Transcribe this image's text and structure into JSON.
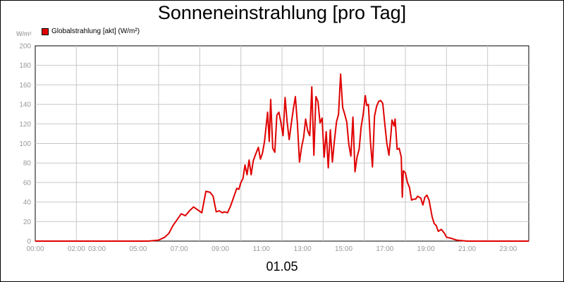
{
  "chart_data": {
    "type": "line",
    "title": "Sonneneinstrahlung [pro Tag]",
    "ylabel": "W/m²",
    "xlabel": "01.05",
    "ylim": [
      0,
      200
    ],
    "y_ticks": [
      "0",
      "20",
      "40",
      "60",
      "80",
      "100",
      "120",
      "140",
      "160",
      "180",
      "200"
    ],
    "x_tick_labels": [
      {
        "hour": 0,
        "label": "00:00"
      },
      {
        "hour": 2,
        "label": "02:00"
      },
      {
        "hour": 3,
        "label": "03:00"
      },
      {
        "hour": 5,
        "label": "05:00"
      },
      {
        "hour": 7,
        "label": "07:00"
      },
      {
        "hour": 9,
        "label": "09:00"
      },
      {
        "hour": 11,
        "label": "11:00"
      },
      {
        "hour": 13,
        "label": "13:00"
      },
      {
        "hour": 15,
        "label": "15:00"
      },
      {
        "hour": 17,
        "label": "17:00"
      },
      {
        "hour": 19,
        "label": "19:00"
      },
      {
        "hour": 21,
        "label": "21:00"
      },
      {
        "hour": 23,
        "label": "23:00"
      }
    ],
    "grid": true,
    "legend_position": "top-left",
    "series": [
      {
        "name": "Globalstrahlung [akt] (W/m²)",
        "color": "#e00000",
        "points": [
          [
            0,
            0
          ],
          [
            5.5,
            0
          ],
          [
            6.0,
            1
          ],
          [
            6.3,
            4
          ],
          [
            6.5,
            8
          ],
          [
            6.7,
            16
          ],
          [
            6.9,
            22
          ],
          [
            7.1,
            28
          ],
          [
            7.3,
            26
          ],
          [
            7.5,
            31
          ],
          [
            7.7,
            35
          ],
          [
            7.9,
            32
          ],
          [
            8.1,
            29
          ],
          [
            8.3,
            51
          ],
          [
            8.5,
            50
          ],
          [
            8.65,
            46
          ],
          [
            8.8,
            30
          ],
          [
            8.95,
            31
          ],
          [
            9.1,
            29
          ],
          [
            9.2,
            30
          ],
          [
            9.35,
            29
          ],
          [
            9.5,
            36
          ],
          [
            9.65,
            45
          ],
          [
            9.8,
            54
          ],
          [
            9.9,
            53
          ],
          [
            10.0,
            60
          ],
          [
            10.1,
            64
          ],
          [
            10.2,
            78
          ],
          [
            10.3,
            68
          ],
          [
            10.4,
            83
          ],
          [
            10.5,
            68
          ],
          [
            10.6,
            82
          ],
          [
            10.7,
            88
          ],
          [
            10.85,
            96
          ],
          [
            10.95,
            84
          ],
          [
            11.05,
            90
          ],
          [
            11.15,
            102
          ],
          [
            11.3,
            132
          ],
          [
            11.38,
            102
          ],
          [
            11.45,
            145
          ],
          [
            11.55,
            95
          ],
          [
            11.65,
            91
          ],
          [
            11.75,
            129
          ],
          [
            11.85,
            132
          ],
          [
            11.95,
            121
          ],
          [
            12.05,
            108
          ],
          [
            12.15,
            147
          ],
          [
            12.25,
            122
          ],
          [
            12.35,
            104
          ],
          [
            12.45,
            120
          ],
          [
            12.55,
            135
          ],
          [
            12.65,
            148
          ],
          [
            12.75,
            120
          ],
          [
            12.85,
            81
          ],
          [
            12.95,
            96
          ],
          [
            13.05,
            106
          ],
          [
            13.15,
            125
          ],
          [
            13.25,
            113
          ],
          [
            13.35,
            108
          ],
          [
            13.45,
            158
          ],
          [
            13.55,
            88
          ],
          [
            13.65,
            148
          ],
          [
            13.75,
            143
          ],
          [
            13.85,
            121
          ],
          [
            13.95,
            126
          ],
          [
            14.05,
            86
          ],
          [
            14.15,
            112
          ],
          [
            14.25,
            75
          ],
          [
            14.35,
            114
          ],
          [
            14.45,
            81
          ],
          [
            14.55,
            103
          ],
          [
            14.65,
            122
          ],
          [
            14.75,
            130
          ],
          [
            14.85,
            171
          ],
          [
            14.95,
            137
          ],
          [
            15.05,
            130
          ],
          [
            15.15,
            122
          ],
          [
            15.25,
            99
          ],
          [
            15.35,
            87
          ],
          [
            15.45,
            127
          ],
          [
            15.55,
            71
          ],
          [
            15.65,
            86
          ],
          [
            15.75,
            94
          ],
          [
            15.85,
            117
          ],
          [
            15.95,
            130
          ],
          [
            16.05,
            149
          ],
          [
            16.12,
            139
          ],
          [
            16.2,
            140
          ],
          [
            16.3,
            102
          ],
          [
            16.4,
            76
          ],
          [
            16.5,
            128
          ],
          [
            16.6,
            138
          ],
          [
            16.7,
            143
          ],
          [
            16.8,
            144
          ],
          [
            16.9,
            141
          ],
          [
            17.0,
            120
          ],
          [
            17.1,
            100
          ],
          [
            17.2,
            88
          ],
          [
            17.3,
            110
          ],
          [
            17.35,
            124
          ],
          [
            17.45,
            118
          ],
          [
            17.5,
            125
          ],
          [
            17.6,
            94
          ],
          [
            17.7,
            95
          ],
          [
            17.8,
            86
          ],
          [
            17.85,
            45
          ],
          [
            17.9,
            72
          ],
          [
            18.0,
            70
          ],
          [
            18.1,
            60
          ],
          [
            18.2,
            55
          ],
          [
            18.3,
            42
          ],
          [
            18.4,
            43
          ],
          [
            18.5,
            43
          ],
          [
            18.6,
            46
          ],
          [
            18.75,
            44
          ],
          [
            18.85,
            37
          ],
          [
            18.95,
            45
          ],
          [
            19.05,
            47
          ],
          [
            19.15,
            42
          ],
          [
            19.3,
            25
          ],
          [
            19.4,
            18
          ],
          [
            19.5,
            16
          ],
          [
            19.6,
            10
          ],
          [
            19.75,
            12
          ],
          [
            19.9,
            8
          ],
          [
            20.0,
            4
          ],
          [
            20.2,
            3
          ],
          [
            20.5,
            1
          ],
          [
            21.0,
            0
          ],
          [
            24.0,
            0
          ]
        ]
      }
    ]
  }
}
